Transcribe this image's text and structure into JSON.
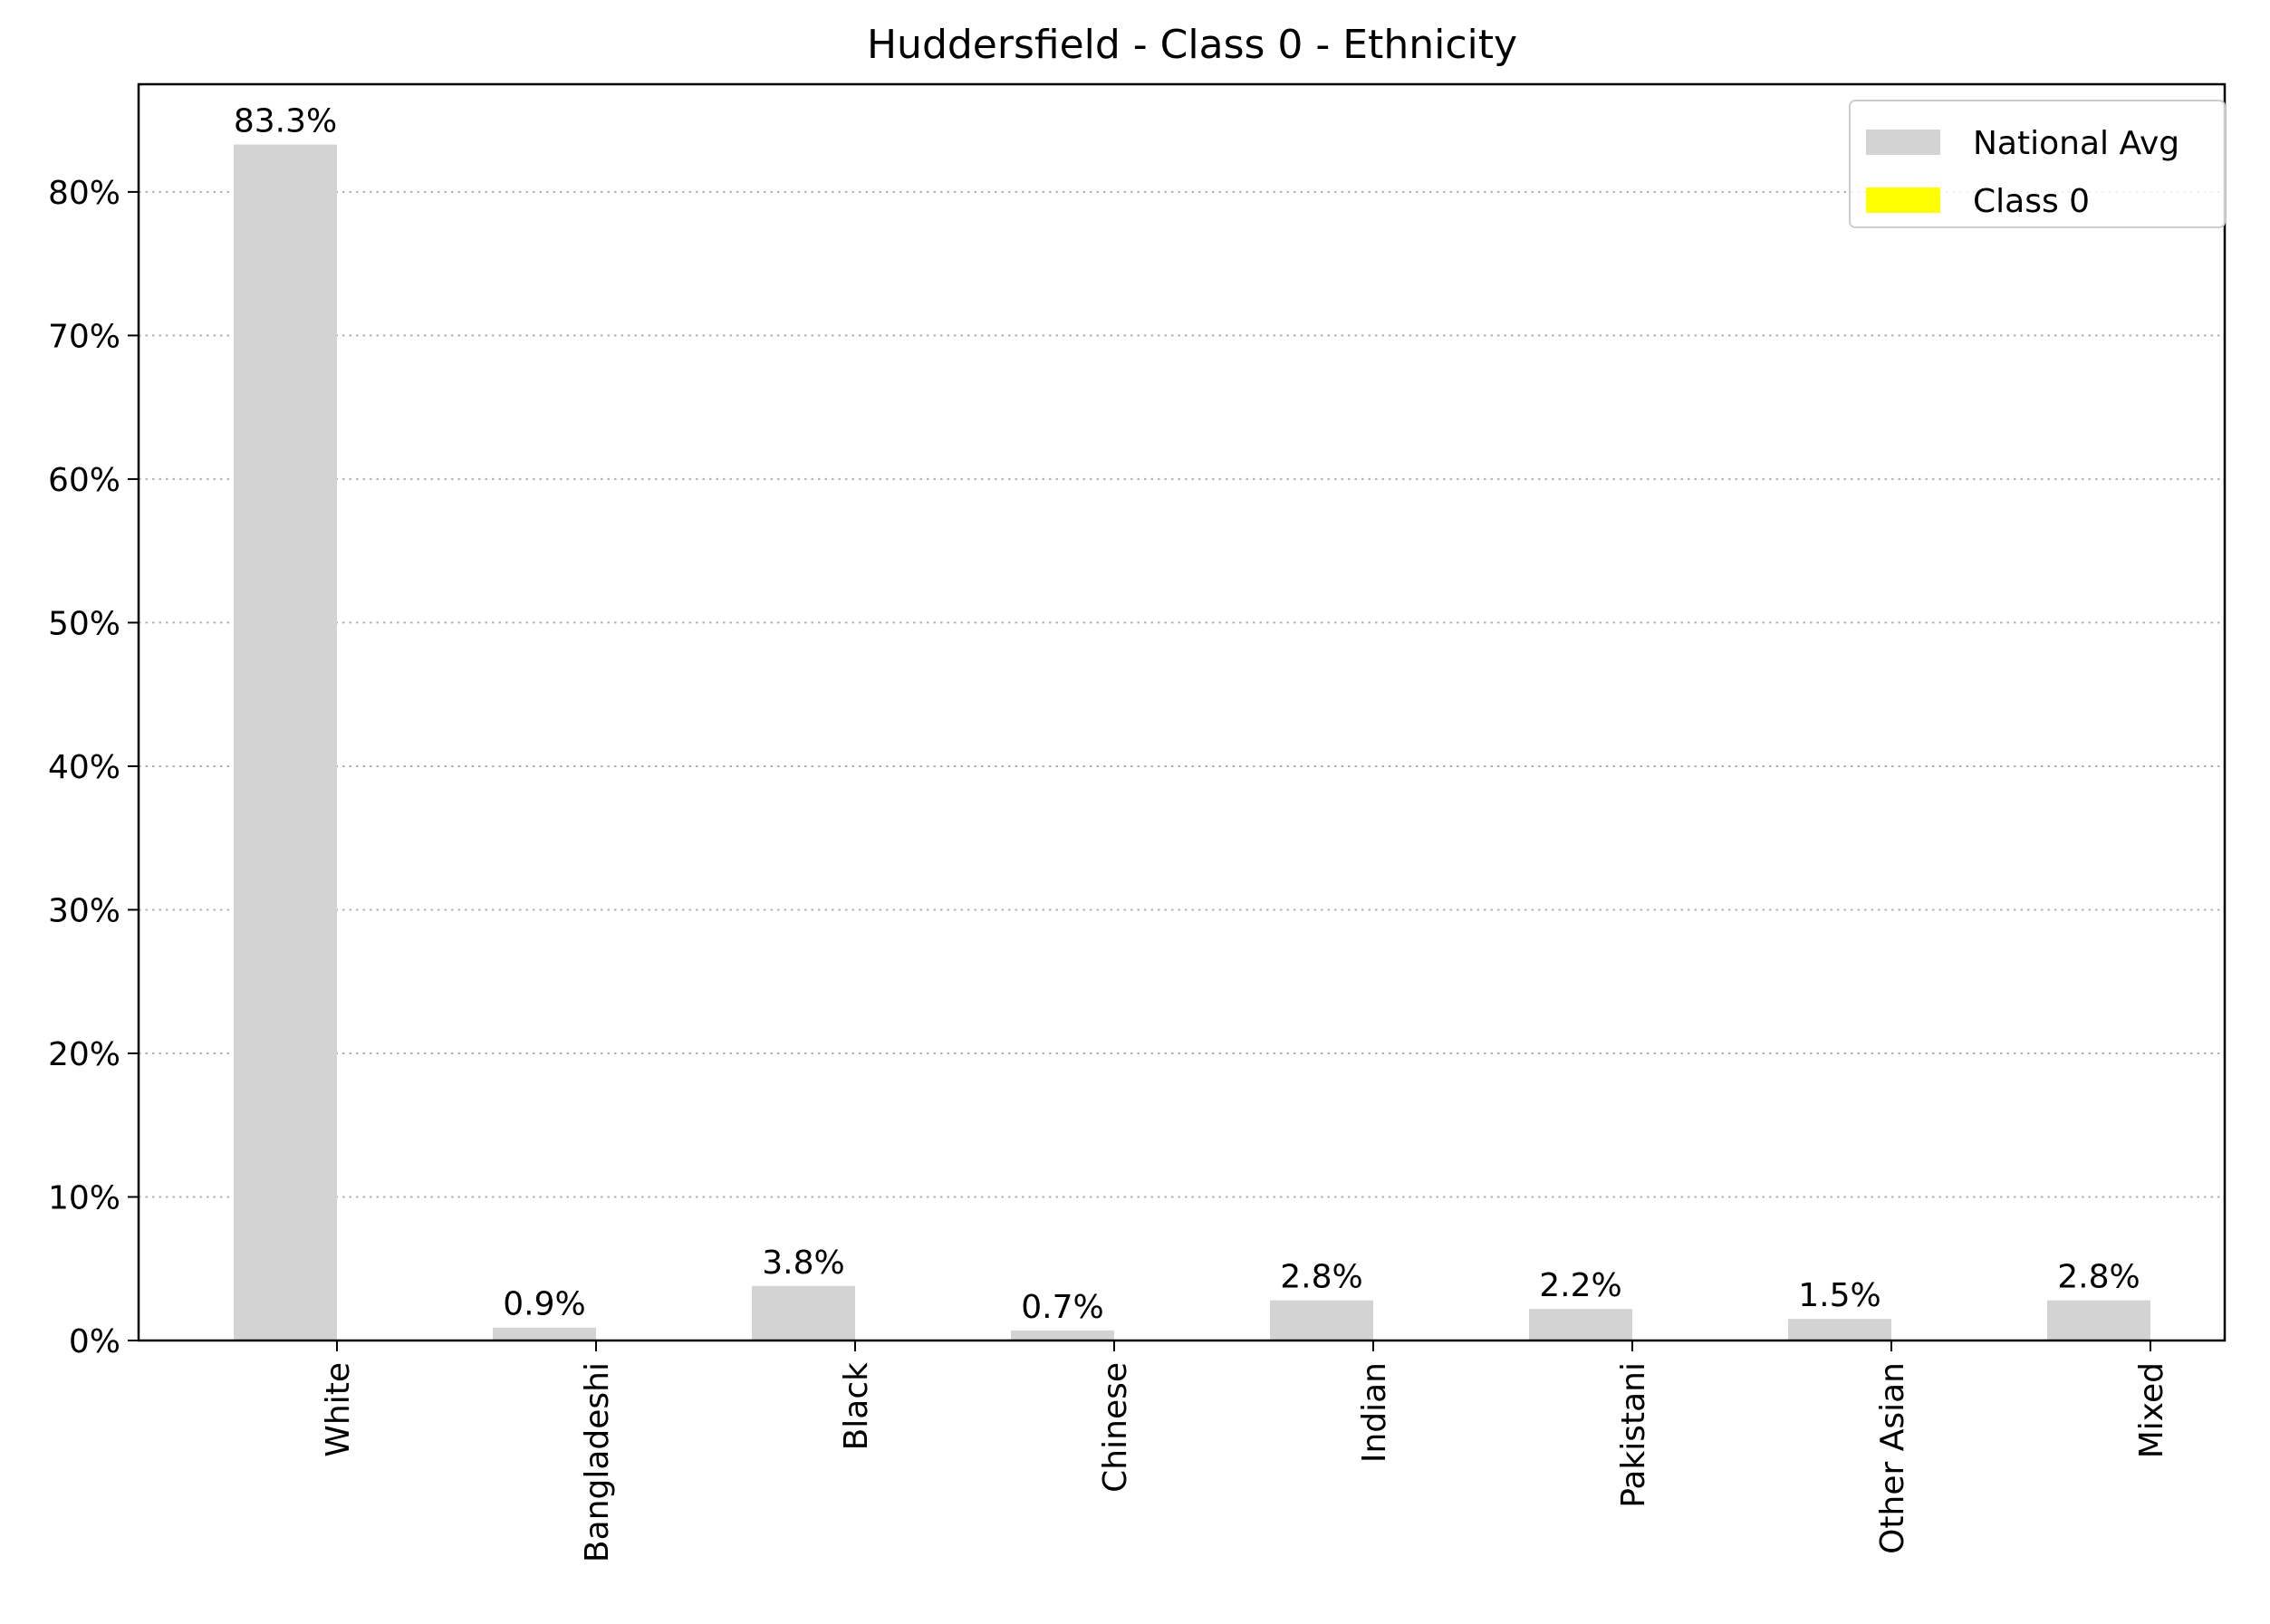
{
  "chart_data": {
    "type": "bar",
    "title": "Huddersfield - Class 0 - Ethnicity",
    "xlabel": "",
    "ylabel": "",
    "categories": [
      "White",
      "Bangladeshi",
      "Black",
      "Chinese",
      "Indian",
      "Pakistani",
      "Other Asian",
      "Mixed"
    ],
    "series": [
      {
        "name": "National Avg",
        "color": "#d3d3d3",
        "values": [
          83.3,
          0.9,
          3.8,
          0.7,
          2.8,
          2.2,
          1.5,
          2.8
        ],
        "labels": [
          "83.3%",
          "0.9%",
          "3.8%",
          "0.7%",
          "2.8%",
          "2.2%",
          "1.5%",
          "2.8%"
        ]
      },
      {
        "name": "Class 0",
        "color": "#ffff00",
        "values": [
          0,
          0,
          0,
          0,
          0,
          0,
          0,
          0
        ],
        "labels": []
      }
    ],
    "ylim": [
      0,
      87.5
    ],
    "yticks": [
      0,
      10,
      20,
      30,
      40,
      50,
      60,
      70,
      80
    ],
    "ytick_labels": [
      "0%",
      "10%",
      "20%",
      "30%",
      "40%",
      "50%",
      "60%",
      "70%",
      "80%"
    ],
    "grid": "y-dotted",
    "legend": "top-right"
  }
}
